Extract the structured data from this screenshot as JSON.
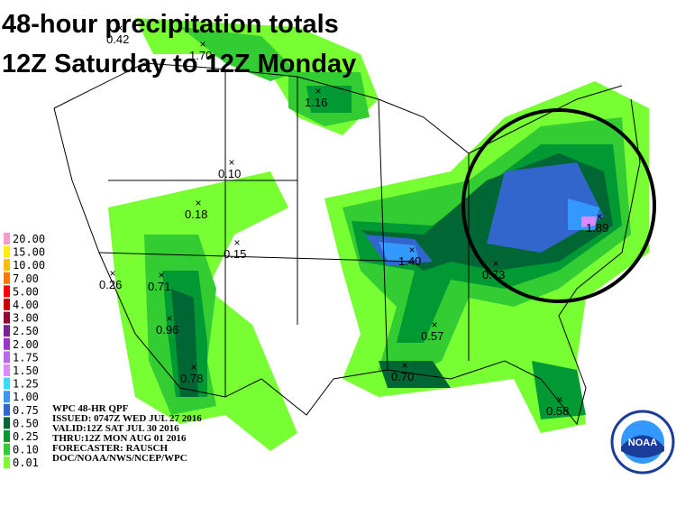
{
  "title": {
    "line1": "48-hour precipitation totals",
    "line2": "12Z Saturday to 12Z Monday"
  },
  "legend": {
    "items": [
      {
        "label": "20.00",
        "color": "#ff99cc"
      },
      {
        "label": "15.00",
        "color": "#ffee00"
      },
      {
        "label": "10.00",
        "color": "#ffbb00"
      },
      {
        "label": "7.00",
        "color": "#ff7700"
      },
      {
        "label": "5.00",
        "color": "#ff0000"
      },
      {
        "label": "4.00",
        "color": "#cc0000"
      },
      {
        "label": "3.00",
        "color": "#990033"
      },
      {
        "label": "2.50",
        "color": "#772299"
      },
      {
        "label": "2.00",
        "color": "#9933cc"
      },
      {
        "label": "1.75",
        "color": "#bb66ee"
      },
      {
        "label": "1.50",
        "color": "#dd88ff"
      },
      {
        "label": "1.25",
        "color": "#33ddff"
      },
      {
        "label": "1.00",
        "color": "#3399ff"
      },
      {
        "label": "0.75",
        "color": "#3366cc"
      },
      {
        "label": "0.50",
        "color": "#006633"
      },
      {
        "label": "0.25",
        "color": "#009933"
      },
      {
        "label": "0.10",
        "color": "#33cc33"
      },
      {
        "label": "0.01",
        "color": "#77ff33"
      }
    ]
  },
  "points": [
    "0.42",
    "1.70",
    "1.16",
    "0.10",
    "0.18",
    "0.15",
    "0.26",
    "0.71",
    "0.96",
    "0.78",
    "1.40",
    "0.73",
    "1.89",
    "0.57",
    "0.70",
    "0.58"
  ],
  "info": [
    "WPC 48-HR QPF",
    "ISSUED: 0747Z WED JUL 27 2016",
    "VALID:12Z SAT JUL 30 2016",
    "THRU:12Z MON AUG 01 2016",
    "FORECASTER: RAUSCH",
    "DOC/NOAA/NWS/NCEP/WPC"
  ],
  "logo": "NOAA"
}
